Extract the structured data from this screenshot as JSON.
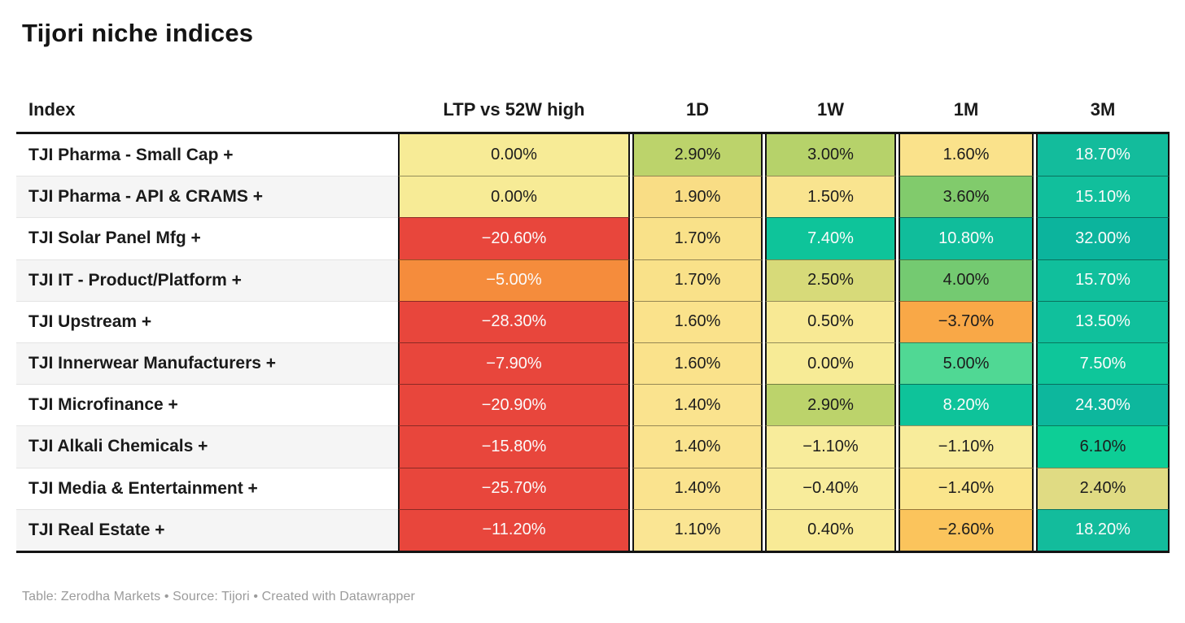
{
  "title": "Tijori niche indices",
  "columns": [
    {
      "key": "index",
      "label": "Index"
    },
    {
      "key": "ltp",
      "label": "LTP vs 52W high"
    },
    {
      "key": "d1",
      "label": "1D"
    },
    {
      "key": "w1",
      "label": "1W"
    },
    {
      "key": "m1",
      "label": "1M"
    },
    {
      "key": "m3",
      "label": "3M"
    }
  ],
  "rows": [
    {
      "name": "TJI Pharma - Small Cap +",
      "ltp": {
        "text": "0.00%",
        "bg": "#F7EB96",
        "fg": "#1c1c1c"
      },
      "d1": {
        "text": "2.90%",
        "bg": "#BCD36B",
        "fg": "#1c1c1c"
      },
      "w1": {
        "text": "3.00%",
        "bg": "#B6D26A",
        "fg": "#1c1c1c"
      },
      "m1": {
        "text": "1.60%",
        "bg": "#FAE28B",
        "fg": "#1c1c1c"
      },
      "m3": {
        "text": "18.70%",
        "bg": "#13BC9C",
        "fg": "#fbfbfb"
      }
    },
    {
      "name": "TJI Pharma - API & CRAMS +",
      "ltp": {
        "text": "0.00%",
        "bg": "#F7EB96",
        "fg": "#1c1c1c"
      },
      "d1": {
        "text": "1.90%",
        "bg": "#F9DD85",
        "fg": "#1c1c1c"
      },
      "w1": {
        "text": "1.50%",
        "bg": "#F9E48F",
        "fg": "#1c1c1c"
      },
      "m1": {
        "text": "3.60%",
        "bg": "#81CB6C",
        "fg": "#1c1c1c"
      },
      "m3": {
        "text": "15.10%",
        "bg": "#11BF9C",
        "fg": "#fbfbfb"
      }
    },
    {
      "name": "TJI Solar Panel Mfg +",
      "ltp": {
        "text": "−20.60%",
        "bg": "#E8463C",
        "fg": "#fbfbfb"
      },
      "d1": {
        "text": "1.70%",
        "bg": "#F9E189",
        "fg": "#1c1c1c"
      },
      "w1": {
        "text": "7.40%",
        "bg": "#0EC49A",
        "fg": "#fbfbfb"
      },
      "m1": {
        "text": "10.80%",
        "bg": "#10BD9B",
        "fg": "#fbfbfb"
      },
      "m3": {
        "text": "32.00%",
        "bg": "#0CB49D",
        "fg": "#fbfbfb"
      }
    },
    {
      "name": "TJI IT - Product/Platform +",
      "ltp": {
        "text": "−5.00%",
        "bg": "#F58C3C",
        "fg": "#fbfbfb"
      },
      "d1": {
        "text": "1.70%",
        "bg": "#F9E189",
        "fg": "#1c1c1c"
      },
      "w1": {
        "text": "2.50%",
        "bg": "#D7DA79",
        "fg": "#1c1c1c"
      },
      "m1": {
        "text": "4.00%",
        "bg": "#74CA71",
        "fg": "#1c1c1c"
      },
      "m3": {
        "text": "15.70%",
        "bg": "#10BF9C",
        "fg": "#fbfbfb"
      }
    },
    {
      "name": "TJI Upstream +",
      "ltp": {
        "text": "−28.30%",
        "bg": "#E8463C",
        "fg": "#fbfbfb"
      },
      "d1": {
        "text": "1.60%",
        "bg": "#FAE28B",
        "fg": "#1c1c1c"
      },
      "w1": {
        "text": "0.50%",
        "bg": "#F8E994",
        "fg": "#1c1c1c"
      },
      "m1": {
        "text": "−3.70%",
        "bg": "#F9A847",
        "fg": "#1c1c1c"
      },
      "m3": {
        "text": "13.50%",
        "bg": "#10C09C",
        "fg": "#fbfbfb"
      }
    },
    {
      "name": "TJI Innerwear Manufacturers +",
      "ltp": {
        "text": "−7.90%",
        "bg": "#E8463C",
        "fg": "#fbfbfb"
      },
      "d1": {
        "text": "1.60%",
        "bg": "#FAE28B",
        "fg": "#1c1c1c"
      },
      "w1": {
        "text": "0.00%",
        "bg": "#F7EB96",
        "fg": "#1c1c1c"
      },
      "m1": {
        "text": "5.00%",
        "bg": "#50D894",
        "fg": "#1c1c1c"
      },
      "m3": {
        "text": "7.50%",
        "bg": "#0EC69A",
        "fg": "#fbfbfb"
      }
    },
    {
      "name": "TJI Microfinance +",
      "ltp": {
        "text": "−20.90%",
        "bg": "#E8463C",
        "fg": "#fbfbfb"
      },
      "d1": {
        "text": "1.40%",
        "bg": "#FAE38E",
        "fg": "#1c1c1c"
      },
      "w1": {
        "text": "2.90%",
        "bg": "#BCD36B",
        "fg": "#1c1c1c"
      },
      "m1": {
        "text": "8.20%",
        "bg": "#0EC39A",
        "fg": "#fbfbfb"
      },
      "m3": {
        "text": "24.30%",
        "bg": "#0DB79D",
        "fg": "#fbfbfb"
      }
    },
    {
      "name": "TJI Alkali Chemicals +",
      "ltp": {
        "text": "−15.80%",
        "bg": "#E8463C",
        "fg": "#fbfbfb"
      },
      "d1": {
        "text": "1.40%",
        "bg": "#FAE38E",
        "fg": "#1c1c1c"
      },
      "w1": {
        "text": "−1.10%",
        "bg": "#F8EC9B",
        "fg": "#1c1c1c"
      },
      "m1": {
        "text": "−1.10%",
        "bg": "#F8EC9B",
        "fg": "#1c1c1c"
      },
      "m3": {
        "text": "6.10%",
        "bg": "#0DCE96",
        "fg": "#1c1c1c"
      }
    },
    {
      "name": "TJI Media & Entertainment +",
      "ltp": {
        "text": "−25.70%",
        "bg": "#E8463C",
        "fg": "#fbfbfb"
      },
      "d1": {
        "text": "1.40%",
        "bg": "#FAE38E",
        "fg": "#1c1c1c"
      },
      "w1": {
        "text": "−0.40%",
        "bg": "#F8EC9B",
        "fg": "#1c1c1c"
      },
      "m1": {
        "text": "−1.40%",
        "bg": "#FAE58C",
        "fg": "#1c1c1c"
      },
      "m3": {
        "text": "2.40%",
        "bg": "#E0DB83",
        "fg": "#1c1c1c"
      }
    },
    {
      "name": "TJI Real Estate +",
      "ltp": {
        "text": "−11.20%",
        "bg": "#E8463C",
        "fg": "#fbfbfb"
      },
      "d1": {
        "text": "1.10%",
        "bg": "#FAE593",
        "fg": "#1c1c1c"
      },
      "w1": {
        "text": "0.40%",
        "bg": "#F8EA96",
        "fg": "#1c1c1c"
      },
      "m1": {
        "text": "−2.60%",
        "bg": "#FBC45C",
        "fg": "#1c1c1c"
      },
      "m3": {
        "text": "18.20%",
        "bg": "#13BC9C",
        "fg": "#fbfbfb"
      }
    }
  ],
  "footer": {
    "text": "Table: Zerodha Markets • Source: Tijori • Created with Datawrapper"
  },
  "palette": {
    "negative_strong": "#E8463C",
    "negative_mid": "#F58C3C",
    "neutral_yellow": "#F7EB96",
    "positive_strong": "#0DBC9C",
    "grid_border": "#141414",
    "zebra_stripe": "#F5F5F5",
    "footer_text": "#9B9B9B"
  },
  "chart_data": {
    "type": "table",
    "title": "Tijori niche indices",
    "columns": [
      "Index",
      "LTP vs 52W high",
      "1D",
      "1W",
      "1M",
      "3M"
    ],
    "units": "percent",
    "color_scale": "diverging red-yellow-green heatmap per cell",
    "rows": [
      [
        "TJI Pharma - Small Cap +",
        0.0,
        2.9,
        3.0,
        1.6,
        18.7
      ],
      [
        "TJI Pharma - API & CRAMS +",
        0.0,
        1.9,
        1.5,
        3.6,
        15.1
      ],
      [
        "TJI Solar Panel Mfg +",
        -20.6,
        1.7,
        7.4,
        10.8,
        32.0
      ],
      [
        "TJI IT - Product/Platform +",
        -5.0,
        1.7,
        2.5,
        4.0,
        15.7
      ],
      [
        "TJI Upstream +",
        -28.3,
        1.6,
        0.5,
        -3.7,
        13.5
      ],
      [
        "TJI Innerwear Manufacturers +",
        -7.9,
        1.6,
        0.0,
        5.0,
        7.5
      ],
      [
        "TJI Microfinance +",
        -20.9,
        1.4,
        2.9,
        8.2,
        24.3
      ],
      [
        "TJI Alkali Chemicals +",
        -15.8,
        1.4,
        -1.1,
        -1.1,
        6.1
      ],
      [
        "TJI Media & Entertainment +",
        -25.7,
        1.4,
        -0.4,
        -1.4,
        2.4
      ],
      [
        "TJI Real Estate +",
        -11.2,
        1.1,
        0.4,
        -2.6,
        18.2
      ]
    ]
  }
}
